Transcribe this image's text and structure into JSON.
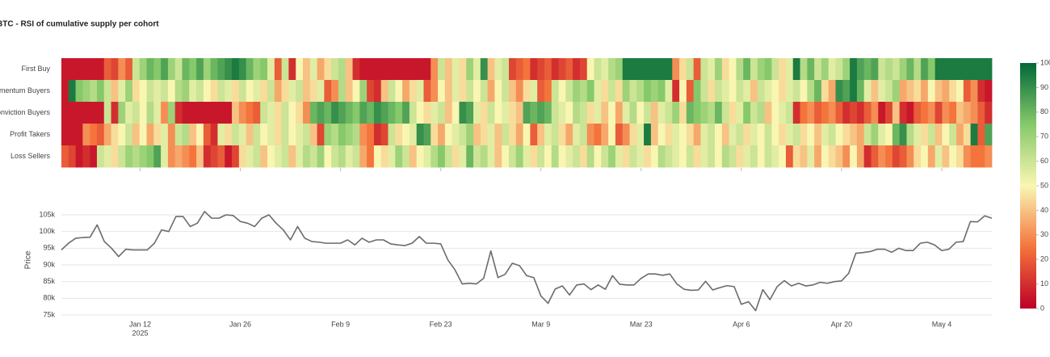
{
  "chart_data": [
    {
      "type": "heatmap",
      "title": "BTC - RSI of cumulative supply per cohort",
      "x": [
        "2025-01-01",
        "2025-01-02",
        "2025-01-03",
        "2025-01-04",
        "2025-01-05",
        "2025-01-06",
        "2025-01-07",
        "2025-01-08",
        "2025-01-09",
        "2025-01-10",
        "2025-01-11",
        "2025-01-12",
        "2025-01-13",
        "2025-01-14",
        "2025-01-15",
        "2025-01-16",
        "2025-01-17",
        "2025-01-18",
        "2025-01-19",
        "2025-01-20",
        "2025-01-21",
        "2025-01-22",
        "2025-01-23",
        "2025-01-24",
        "2025-01-25",
        "2025-01-26",
        "2025-01-27",
        "2025-01-28",
        "2025-01-29",
        "2025-01-30",
        "2025-01-31",
        "2025-02-01",
        "2025-02-02",
        "2025-02-03",
        "2025-02-04",
        "2025-02-05",
        "2025-02-06",
        "2025-02-07",
        "2025-02-08",
        "2025-02-09",
        "2025-02-10",
        "2025-02-11",
        "2025-02-12",
        "2025-02-13",
        "2025-02-14",
        "2025-02-15",
        "2025-02-16",
        "2025-02-17",
        "2025-02-18",
        "2025-02-19",
        "2025-02-20",
        "2025-02-21",
        "2025-02-22",
        "2025-02-23",
        "2025-02-24",
        "2025-02-25",
        "2025-02-26",
        "2025-02-27",
        "2025-02-28",
        "2025-03-01",
        "2025-03-02",
        "2025-03-03",
        "2025-03-04",
        "2025-03-05",
        "2025-03-06",
        "2025-03-07",
        "2025-03-08",
        "2025-03-09",
        "2025-03-10",
        "2025-03-11",
        "2025-03-12",
        "2025-03-13",
        "2025-03-14",
        "2025-03-15",
        "2025-03-16",
        "2025-03-17",
        "2025-03-18",
        "2025-03-19",
        "2025-03-20",
        "2025-03-21",
        "2025-03-22",
        "2025-03-23",
        "2025-03-24",
        "2025-03-25",
        "2025-03-26",
        "2025-03-27",
        "2025-03-28",
        "2025-03-29",
        "2025-03-30",
        "2025-03-31",
        "2025-04-01",
        "2025-04-02",
        "2025-04-03",
        "2025-04-04",
        "2025-04-05",
        "2025-04-06",
        "2025-04-07",
        "2025-04-08",
        "2025-04-09",
        "2025-04-10",
        "2025-04-11",
        "2025-04-12",
        "2025-04-13",
        "2025-04-14",
        "2025-04-15",
        "2025-04-16",
        "2025-04-17",
        "2025-04-18",
        "2025-04-19",
        "2025-04-20",
        "2025-04-21",
        "2025-04-22",
        "2025-04-23",
        "2025-04-24",
        "2025-04-25",
        "2025-04-26",
        "2025-04-27",
        "2025-04-28",
        "2025-04-29",
        "2025-04-30",
        "2025-05-01",
        "2025-05-02",
        "2025-05-03",
        "2025-05-04",
        "2025-05-05",
        "2025-05-06",
        "2025-05-07",
        "2025-05-08",
        "2025-05-09",
        "2025-05-10",
        "2025-05-11"
      ],
      "y": [
        "First Buy",
        "Momentum Buyers",
        "Conviction Buyers",
        "Profit Takers",
        "Loss Sellers"
      ],
      "z": [
        [
          5,
          5,
          5,
          5,
          5,
          5,
          20,
          15,
          30,
          20,
          60,
          70,
          80,
          75,
          85,
          70,
          60,
          80,
          75,
          85,
          70,
          80,
          85,
          90,
          95,
          90,
          80,
          70,
          75,
          55,
          20,
          60,
          10,
          50,
          40,
          55,
          35,
          45,
          60,
          65,
          40,
          10,
          5,
          5,
          5,
          5,
          5,
          5,
          5,
          5,
          5,
          5,
          30,
          60,
          40,
          55,
          45,
          70,
          55,
          90,
          40,
          55,
          60,
          15,
          20,
          25,
          10,
          15,
          20,
          10,
          15,
          20,
          10,
          15,
          50,
          60,
          55,
          65,
          70,
          95,
          95,
          95,
          95,
          95,
          95,
          95,
          30,
          45,
          60,
          20,
          60,
          55,
          70,
          45,
          50,
          65,
          80,
          60,
          70,
          75,
          60,
          45,
          55,
          95,
          65,
          80,
          60,
          70,
          55,
          60,
          70,
          95,
          85,
          80,
          85,
          60,
          65,
          60,
          70,
          80,
          65,
          85,
          75,
          95,
          95,
          95,
          95,
          95,
          95,
          95,
          95
        ],
        [
          5,
          95,
          75,
          70,
          65,
          75,
          60,
          40,
          55,
          70,
          45,
          50,
          60,
          55,
          60,
          50,
          65,
          70,
          55,
          60,
          50,
          45,
          60,
          55,
          45,
          60,
          50,
          55,
          45,
          60,
          35,
          45,
          55,
          60,
          40,
          45,
          55,
          20,
          30,
          65,
          40,
          50,
          70,
          15,
          10,
          40,
          60,
          50,
          35,
          45,
          55,
          20,
          30,
          50,
          40,
          55,
          45,
          60,
          50,
          60,
          35,
          50,
          60,
          40,
          30,
          45,
          55,
          20,
          25,
          60,
          50,
          60,
          70,
          65,
          75,
          55,
          45,
          60,
          45,
          70,
          60,
          65,
          75,
          70,
          75,
          55,
          10,
          50,
          20,
          75,
          60,
          45,
          60,
          55,
          50,
          60,
          55,
          40,
          60,
          55,
          50,
          45,
          55,
          60,
          50,
          65,
          80,
          45,
          35,
          90,
          85,
          95,
          80,
          55,
          40,
          55,
          60,
          70,
          35,
          40,
          45,
          35,
          50,
          40,
          35,
          45,
          50,
          20,
          30,
          10,
          5
        ],
        [
          5,
          5,
          5,
          5,
          5,
          5,
          60,
          10,
          70,
          55,
          60,
          50,
          65,
          55,
          30,
          70,
          10,
          5,
          5,
          5,
          5,
          5,
          5,
          5,
          40,
          30,
          25,
          20,
          60,
          55,
          45,
          60,
          50,
          45,
          30,
          80,
          85,
          80,
          90,
          85,
          80,
          75,
          85,
          80,
          90,
          85,
          80,
          75,
          85,
          60,
          50,
          45,
          55,
          60,
          40,
          50,
          90,
          85,
          55,
          45,
          60,
          50,
          55,
          45,
          40,
          85,
          80,
          85,
          80,
          60,
          55,
          50,
          65,
          60,
          45,
          55,
          40,
          50,
          35,
          55,
          65,
          50,
          60,
          40,
          55,
          60,
          70,
          45,
          80,
          75,
          70,
          65,
          80,
          60,
          45,
          55,
          75,
          60,
          65,
          40,
          50,
          55,
          60,
          10,
          25,
          30,
          20,
          25,
          30,
          20,
          10,
          15,
          10,
          20,
          30,
          5,
          15,
          40,
          10,
          5,
          20,
          25,
          30,
          15,
          30,
          25,
          40,
          35,
          30,
          20,
          10
        ],
        [
          5,
          5,
          5,
          30,
          25,
          20,
          35,
          45,
          50,
          60,
          40,
          50,
          35,
          45,
          55,
          30,
          60,
          65,
          40,
          50,
          20,
          10,
          55,
          45,
          60,
          55,
          40,
          60,
          50,
          55,
          45,
          60,
          50,
          55,
          60,
          40,
          15,
          70,
          65,
          75,
          70,
          65,
          30,
          25,
          10,
          15,
          60,
          45,
          50,
          55,
          90,
          85,
          45,
          35,
          50,
          55,
          60,
          70,
          40,
          45,
          55,
          40,
          60,
          45,
          35,
          50,
          20,
          40,
          55,
          60,
          45,
          35,
          55,
          60,
          30,
          25,
          35,
          50,
          20,
          30,
          45,
          55,
          95,
          40,
          50,
          45,
          55,
          50,
          45,
          35,
          55,
          60,
          50,
          40,
          55,
          60,
          45,
          55,
          50,
          60,
          50,
          45,
          55,
          60,
          45,
          50,
          40,
          55,
          60,
          50,
          45,
          40,
          35,
          60,
          70,
          55,
          50,
          80,
          90,
          65,
          55,
          45,
          60,
          40,
          50,
          60,
          35,
          45,
          95,
          20,
          85
        ],
        [
          20,
          15,
          5,
          10,
          5,
          60,
          55,
          45,
          60,
          70,
          65,
          70,
          75,
          85,
          55,
          30,
          35,
          30,
          25,
          40,
          10,
          15,
          20,
          5,
          15,
          45,
          55,
          60,
          40,
          50,
          55,
          60,
          40,
          55,
          65,
          60,
          70,
          50,
          60,
          65,
          55,
          60,
          35,
          25,
          50,
          45,
          55,
          70,
          60,
          40,
          50,
          55,
          65,
          75,
          60,
          45,
          55,
          80,
          60,
          65,
          55,
          40,
          50,
          60,
          70,
          55,
          45,
          60,
          50,
          65,
          50,
          55,
          60,
          45,
          65,
          50,
          60,
          70,
          55,
          45,
          60,
          55,
          45,
          50,
          65,
          60,
          55,
          50,
          60,
          45,
          55,
          60,
          50,
          65,
          60,
          45,
          55,
          60,
          50,
          60,
          55,
          50,
          20,
          45,
          40,
          55,
          35,
          50,
          45,
          40,
          30,
          50,
          35,
          10,
          20,
          30,
          25,
          15,
          20,
          30,
          45,
          50,
          35,
          55,
          40,
          50,
          45,
          30,
          25,
          25,
          30
        ]
      ],
      "zlim": [
        0,
        100
      ],
      "colorbar_ticks": [
        0,
        10,
        20,
        30,
        40,
        50,
        60,
        70,
        80,
        90,
        100
      ],
      "colorscale": [
        [
          0,
          "#bd0026"
        ],
        [
          0.25,
          "#f4743c"
        ],
        [
          0.5,
          "#f9f6b2"
        ],
        [
          0.75,
          "#86c96a"
        ],
        [
          1,
          "#006837"
        ]
      ]
    },
    {
      "type": "line",
      "x": [
        "2025-01-01",
        "2025-01-02",
        "2025-01-03",
        "2025-01-04",
        "2025-01-05",
        "2025-01-06",
        "2025-01-07",
        "2025-01-08",
        "2025-01-09",
        "2025-01-10",
        "2025-01-11",
        "2025-01-12",
        "2025-01-13",
        "2025-01-14",
        "2025-01-15",
        "2025-01-16",
        "2025-01-17",
        "2025-01-18",
        "2025-01-19",
        "2025-01-20",
        "2025-01-21",
        "2025-01-22",
        "2025-01-23",
        "2025-01-24",
        "2025-01-25",
        "2025-01-26",
        "2025-01-27",
        "2025-01-28",
        "2025-01-29",
        "2025-01-30",
        "2025-01-31",
        "2025-02-01",
        "2025-02-02",
        "2025-02-03",
        "2025-02-04",
        "2025-02-05",
        "2025-02-06",
        "2025-02-07",
        "2025-02-08",
        "2025-02-09",
        "2025-02-10",
        "2025-02-11",
        "2025-02-12",
        "2025-02-13",
        "2025-02-14",
        "2025-02-15",
        "2025-02-16",
        "2025-02-17",
        "2025-02-18",
        "2025-02-19",
        "2025-02-20",
        "2025-02-21",
        "2025-02-22",
        "2025-02-23",
        "2025-02-24",
        "2025-02-25",
        "2025-02-26",
        "2025-02-27",
        "2025-02-28",
        "2025-03-01",
        "2025-03-02",
        "2025-03-03",
        "2025-03-04",
        "2025-03-05",
        "2025-03-06",
        "2025-03-07",
        "2025-03-08",
        "2025-03-09",
        "2025-03-10",
        "2025-03-11",
        "2025-03-12",
        "2025-03-13",
        "2025-03-14",
        "2025-03-15",
        "2025-03-16",
        "2025-03-17",
        "2025-03-18",
        "2025-03-19",
        "2025-03-20",
        "2025-03-21",
        "2025-03-22",
        "2025-03-23",
        "2025-03-24",
        "2025-03-25",
        "2025-03-26",
        "2025-03-27",
        "2025-03-28",
        "2025-03-29",
        "2025-03-30",
        "2025-03-31",
        "2025-04-01",
        "2025-04-02",
        "2025-04-03",
        "2025-04-04",
        "2025-04-05",
        "2025-04-06",
        "2025-04-07",
        "2025-04-08",
        "2025-04-09",
        "2025-04-10",
        "2025-04-11",
        "2025-04-12",
        "2025-04-13",
        "2025-04-14",
        "2025-04-15",
        "2025-04-16",
        "2025-04-17",
        "2025-04-18",
        "2025-04-19",
        "2025-04-20",
        "2025-04-21",
        "2025-04-22",
        "2025-04-23",
        "2025-04-24",
        "2025-04-25",
        "2025-04-26",
        "2025-04-27",
        "2025-04-28",
        "2025-04-29",
        "2025-04-30",
        "2025-05-01",
        "2025-05-02",
        "2025-05-03",
        "2025-05-04",
        "2025-05-05",
        "2025-05-06",
        "2025-05-07",
        "2025-05-08",
        "2025-05-09",
        "2025-05-10",
        "2025-05-11"
      ],
      "values": [
        94500,
        96500,
        98000,
        98200,
        98300,
        102000,
        97000,
        95000,
        92500,
        94700,
        94500,
        94500,
        94500,
        96500,
        100500,
        100000,
        104500,
        104500,
        101500,
        102500,
        106000,
        104000,
        104000,
        105000,
        104800,
        103000,
        102500,
        101500,
        104000,
        105000,
        102500,
        100500,
        97500,
        101500,
        98000,
        97000,
        96800,
        96500,
        96500,
        96500,
        97500,
        96000,
        98000,
        96800,
        97500,
        97500,
        96300,
        96000,
        95800,
        96500,
        98500,
        96500,
        96500,
        96300,
        91500,
        88500,
        84300,
        84500,
        84300,
        86000,
        94200,
        86200,
        87200,
        90500,
        89800,
        86800,
        86200,
        80700,
        78500,
        82800,
        83700,
        81000,
        84000,
        84300,
        82600,
        84000,
        82700,
        86800,
        84200,
        84000,
        84000,
        86000,
        87300,
        87300,
        86900,
        87300,
        84300,
        82700,
        82400,
        82500,
        85100,
        82500,
        83200,
        83800,
        83500,
        78200,
        79000,
        76300,
        82600,
        79600,
        83500,
        85300,
        83700,
        84500,
        83700,
        84000,
        84800,
        84500,
        85000,
        85200,
        87500,
        93500,
        93700,
        94000,
        94700,
        94700,
        93800,
        95000,
        94300,
        94300,
        96500,
        96800,
        96000,
        94300,
        94700,
        96800,
        97000,
        103000,
        102900,
        104700,
        104000
      ],
      "color": "#6b6b6b",
      "y_label": "Price",
      "xlim": [
        "2025-01-01",
        "2025-05-11"
      ],
      "xticks": [
        {
          "value": "2025-01-12",
          "label": "Jan 12"
        },
        {
          "value": "2025-01-26",
          "label": "Jan 26"
        },
        {
          "value": "2025-02-09",
          "label": "Feb 9"
        },
        {
          "value": "2025-02-23",
          "label": "Feb 23"
        },
        {
          "value": "2025-03-09",
          "label": "Mar 9"
        },
        {
          "value": "2025-03-23",
          "label": "Mar 23"
        },
        {
          "value": "2025-04-06",
          "label": "Apr 6"
        },
        {
          "value": "2025-04-20",
          "label": "Apr 20"
        },
        {
          "value": "2025-05-04",
          "label": "May 4"
        }
      ],
      "x_year_label": "2025",
      "ylim": [
        75000,
        108000
      ],
      "yticks": [
        {
          "value": 75000,
          "label": "75k"
        },
        {
          "value": 80000,
          "label": "80k"
        },
        {
          "value": 85000,
          "label": "85k"
        },
        {
          "value": 90000,
          "label": "90k"
        },
        {
          "value": 95000,
          "label": "95k"
        },
        {
          "value": 100000,
          "label": "100k"
        },
        {
          "value": 105000,
          "label": "105k"
        }
      ],
      "grid": true
    }
  ]
}
